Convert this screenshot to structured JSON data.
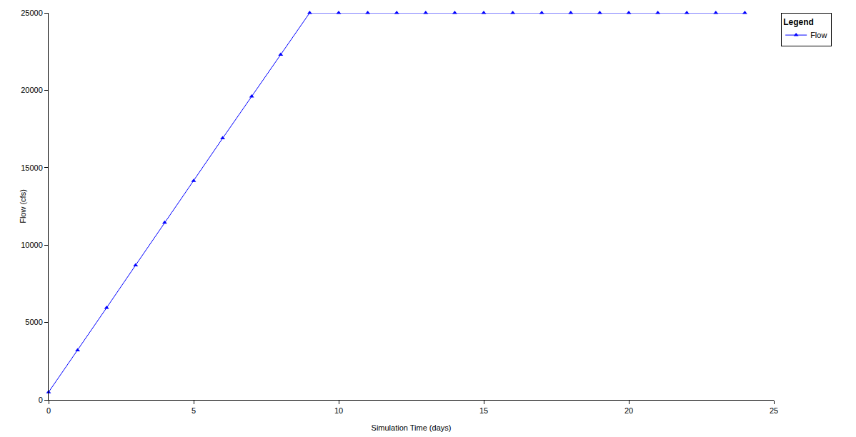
{
  "chart_data": {
    "type": "line",
    "x_label": "Simulation Time (days)",
    "y_label": "Flow (cfs)",
    "legend_title": "Legend",
    "x": [
      0,
      1,
      2,
      3,
      4,
      5,
      6,
      7,
      8,
      9,
      10,
      11,
      12,
      13,
      14,
      15,
      16,
      17,
      18,
      19,
      20,
      21,
      22,
      23,
      24
    ],
    "series": [
      {
        "name": "Flow",
        "color": "#0000ff",
        "marker": "triangle-up",
        "line_style": "solid",
        "values": [
          500,
          3200,
          5950,
          8700,
          11450,
          14150,
          16900,
          19600,
          22300,
          25000,
          25000,
          25000,
          25000,
          25000,
          25000,
          25000,
          25000,
          25000,
          25000,
          25000,
          25000,
          25000,
          25000,
          25000,
          25000
        ]
      }
    ],
    "xlim": [
      0,
      25
    ],
    "xticks": [
      0,
      5,
      10,
      15,
      20,
      25
    ],
    "ylim": [
      0,
      25000
    ],
    "yticks": [
      0,
      5000,
      10000,
      15000,
      20000,
      25000
    ],
    "grid": false,
    "legend": "top-right"
  }
}
